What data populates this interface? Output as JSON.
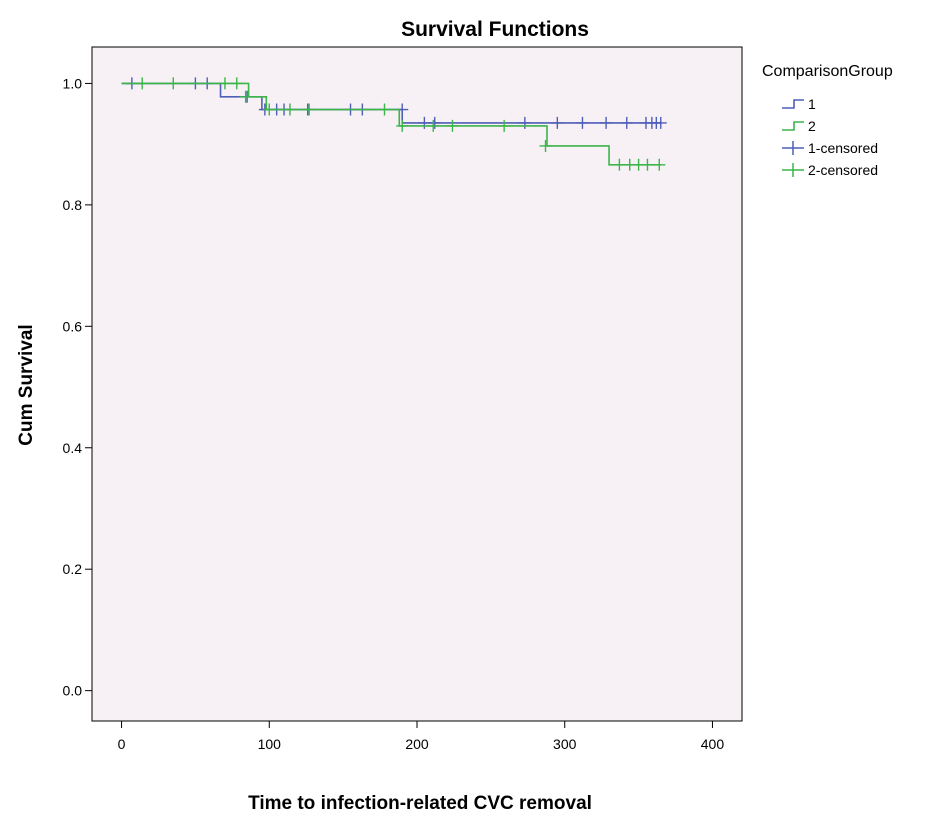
{
  "chart_data": {
    "type": "line",
    "subtype": "kaplan-meier",
    "title": "Survival Functions",
    "xlabel": "Time to infection-related CVC removal",
    "ylabel": "Cum Survival",
    "xlim": [
      -20,
      420
    ],
    "ylim": [
      -0.05,
      1.06
    ],
    "xticks": [
      0,
      100,
      200,
      300,
      400
    ],
    "yticks": [
      0.0,
      0.2,
      0.4,
      0.6,
      0.8,
      1.0
    ],
    "xtick_labels": [
      "0",
      "100",
      "200",
      "300",
      "400"
    ],
    "ytick_labels": [
      "0.0",
      "0.2",
      "0.4",
      "0.6",
      "0.8",
      "1.0"
    ],
    "grid": false,
    "plot_background": "#f7f0f5",
    "legend_title": "ComparisonGroup",
    "legend_position": "right",
    "series": [
      {
        "name": "1",
        "color": "#4f5fb8",
        "steps": [
          [
            0,
            1.0
          ],
          [
            67,
            0.978
          ],
          [
            95,
            0.957
          ],
          [
            190,
            0.935
          ],
          [
            365,
            0.935
          ]
        ],
        "censored": [
          [
            7,
            1.0
          ],
          [
            50,
            1.0
          ],
          [
            58,
            1.0
          ],
          [
            85,
            0.978
          ],
          [
            97,
            0.957
          ],
          [
            105,
            0.957
          ],
          [
            110,
            0.957
          ],
          [
            126,
            0.957
          ],
          [
            155,
            0.957
          ],
          [
            163,
            0.957
          ],
          [
            190,
            0.957
          ],
          [
            205,
            0.935
          ],
          [
            212,
            0.935
          ],
          [
            273,
            0.935
          ],
          [
            295,
            0.935
          ],
          [
            312,
            0.935
          ],
          [
            328,
            0.935
          ],
          [
            342,
            0.935
          ],
          [
            355,
            0.935
          ],
          [
            359,
            0.935
          ],
          [
            362,
            0.935
          ],
          [
            365,
            0.935
          ]
        ]
      },
      {
        "name": "2",
        "color": "#3cb54a",
        "steps": [
          [
            0,
            1.0
          ],
          [
            86,
            0.978
          ],
          [
            98,
            0.957
          ],
          [
            188,
            0.93
          ],
          [
            288,
            0.897
          ],
          [
            330,
            0.866
          ],
          [
            365,
            0.866
          ]
        ],
        "censored": [
          [
            14,
            1.0
          ],
          [
            35,
            1.0
          ],
          [
            70,
            1.0
          ],
          [
            78,
            1.0
          ],
          [
            84,
            0.978
          ],
          [
            100,
            0.957
          ],
          [
            114,
            0.957
          ],
          [
            127,
            0.957
          ],
          [
            178,
            0.957
          ],
          [
            190,
            0.93
          ],
          [
            211,
            0.93
          ],
          [
            224,
            0.93
          ],
          [
            259,
            0.93
          ],
          [
            287,
            0.897
          ],
          [
            337,
            0.866
          ],
          [
            344,
            0.866
          ],
          [
            350,
            0.866
          ],
          [
            356,
            0.866
          ],
          [
            364,
            0.866
          ]
        ]
      }
    ],
    "legend_entries": [
      {
        "label": "1",
        "symbol": "step",
        "color": "#4f5fb8"
      },
      {
        "label": "2",
        "symbol": "step",
        "color": "#3cb54a"
      },
      {
        "label": "1-censored",
        "symbol": "plus",
        "color": "#4f5fb8"
      },
      {
        "label": "2-censored",
        "symbol": "plus",
        "color": "#3cb54a"
      }
    ]
  }
}
